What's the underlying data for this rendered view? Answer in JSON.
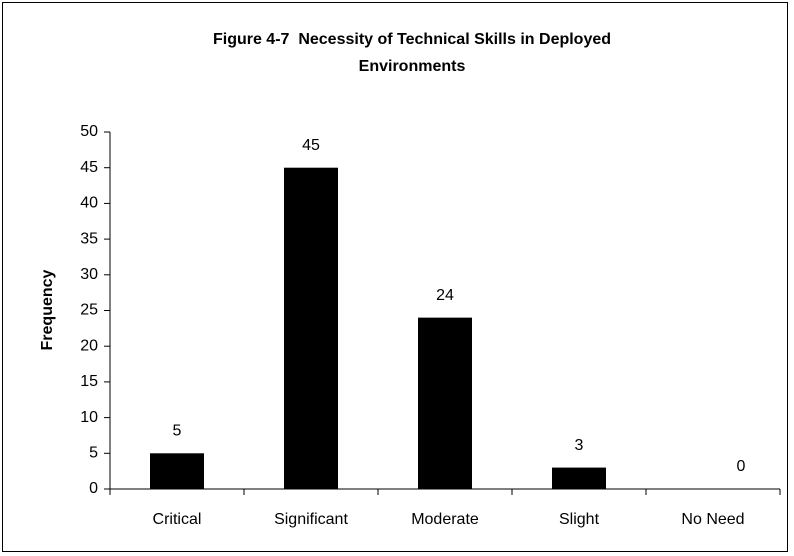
{
  "chart_data": {
    "type": "bar",
    "title": [
      "Figure 4-7  Necessity of Technical Skills in Deployed",
      "Environments"
    ],
    "y_label": "Frequency",
    "categories": [
      "Critical",
      "Significant",
      "Moderate",
      "Slight",
      "No Need"
    ],
    "values": [
      5,
      45,
      24,
      3,
      0
    ],
    "color": "#000000",
    "ylim": [
      0,
      50
    ],
    "yticks": [
      0,
      5,
      10,
      15,
      20,
      25,
      30,
      35,
      40,
      45,
      50
    ],
    "grid": false
  }
}
